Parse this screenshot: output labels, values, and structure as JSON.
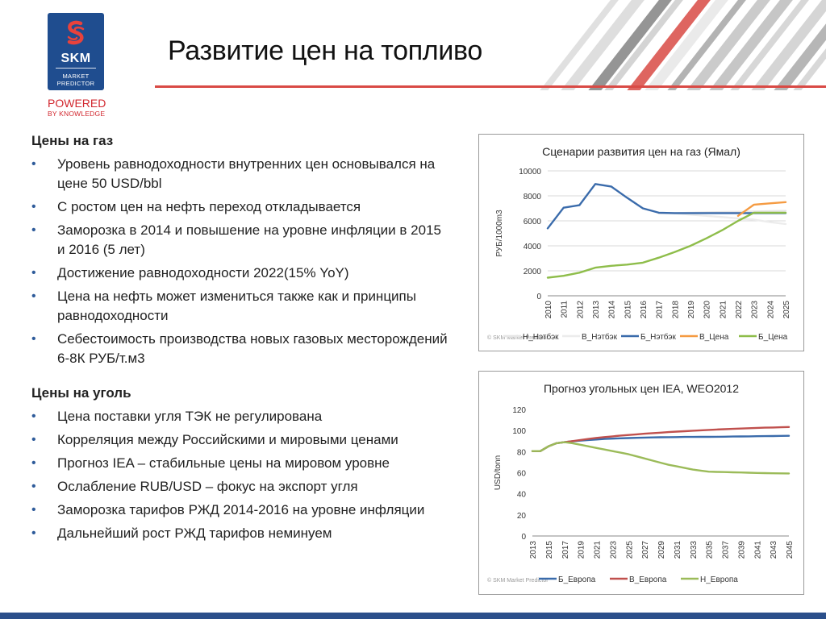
{
  "logo": {
    "name": "SKM",
    "tagline_line1": "MARKET",
    "tagline_line2": "PREDICTOR",
    "powered": "POWERED",
    "by": "BY KNOWLEDGE"
  },
  "page_title": "Развитие цен на топливо",
  "gas_section": {
    "heading": "Цены на газ",
    "bullets": [
      "Уровень равнодоходности внутренних цен основывался на цене 50 USD/bbl",
      "С ростом цен на нефть переход откладывается",
      "Заморозка в 2014 и повышение на уровне инфляции в 2015 и 2016 (5 лет)",
      "Достижение равнодоходности 2022(15% YoY)",
      "Цена на нефть может измениться также как и принципы равнодоходности",
      "Себестоимость производства новых  газовых месторождений 6-8К РУБ/т.м3"
    ]
  },
  "coal_section": {
    "heading": "Цены на уголь",
    "bullets": [
      "Цена поставки угля ТЭК не регулирована",
      "Корреляция между Российскими и мировыми ценами",
      "Прогноз IEA – стабильные цены на мировом уровне",
      "Ослабление RUB/USD – фокус на экспорт угля",
      "Заморозка тарифов РЖД 2014-2016 на уровне инфляции",
      "Дальнейший рост РЖД тарифов неминуем"
    ]
  },
  "colors": {
    "accent_red": "#d94a45",
    "brand_blue": "#1f4d8f",
    "gridline": "#d9d9d9"
  },
  "chart_data": [
    {
      "type": "line",
      "title": "Сценарии развития цен на газ (Ямал)",
      "ylabel": "РУБ/1000m3",
      "xlabel": "",
      "watermark": "© SKM Market Predictor",
      "ylim": [
        0,
        10000
      ],
      "yticks": [
        0,
        2000,
        4000,
        6000,
        8000,
        10000
      ],
      "grid": true,
      "legend_position": "bottom",
      "x": [
        2010,
        2011,
        2012,
        2013,
        2014,
        2015,
        2016,
        2017,
        2018,
        2019,
        2020,
        2021,
        2022,
        2023,
        2024,
        2025
      ],
      "series": [
        {
          "name": "Н_Нэтбэк",
          "color": "#e6e6e6",
          "values": [
            null,
            null,
            null,
            null,
            null,
            null,
            null,
            6600,
            6620,
            6650,
            6680,
            6700,
            6720,
            6750,
            6780,
            6800
          ]
        },
        {
          "name": "В_Нэтбэк",
          "color": "#ececec",
          "values": [
            null,
            null,
            null,
            null,
            null,
            null,
            null,
            6650,
            6600,
            6500,
            6400,
            6300,
            6200,
            6100,
            5900,
            5750
          ]
        },
        {
          "name": "Б_Нэтбэк",
          "color": "#3a6bab",
          "values": [
            5400,
            7050,
            7250,
            8950,
            8750,
            7850,
            7000,
            6650,
            6620,
            6620,
            6620,
            6620,
            6620,
            6620,
            6620,
            6620
          ]
        },
        {
          "name": "В_Цена",
          "color": "#f59b42",
          "values": [
            null,
            null,
            null,
            null,
            null,
            null,
            null,
            null,
            null,
            null,
            null,
            null,
            6400,
            7300,
            7400,
            7500
          ]
        },
        {
          "name": "Б_Цена",
          "color": "#8ebd4a",
          "values": [
            1450,
            1600,
            1850,
            2250,
            2400,
            2500,
            2650,
            3050,
            3500,
            4000,
            4600,
            5250,
            6000,
            6650,
            6650,
            6650
          ]
        }
      ]
    },
    {
      "type": "line",
      "title": "Прогноз угольных цен IEA, WEO2012",
      "ylabel": "USD/tonn",
      "xlabel": "",
      "watermark": "© SKM Market Predictor",
      "ylim": [
        0,
        120
      ],
      "yticks": [
        0,
        20,
        40,
        60,
        80,
        100,
        120
      ],
      "grid": false,
      "legend_position": "bottom",
      "x": [
        2013,
        2014,
        2015,
        2016,
        2017,
        2018,
        2019,
        2020,
        2021,
        2022,
        2023,
        2024,
        2025,
        2026,
        2027,
        2028,
        2029,
        2030,
        2031,
        2032,
        2033,
        2034,
        2035,
        2036,
        2037,
        2038,
        2039,
        2040,
        2041,
        2042,
        2043,
        2044,
        2045
      ],
      "xtick_labels": [
        "2013",
        "2015",
        "2017",
        "2019",
        "2021",
        "2023",
        "2025",
        "2027",
        "2029",
        "2031",
        "2033",
        "2035",
        "2037",
        "2039",
        "2041",
        "2043",
        "2045"
      ],
      "series": [
        {
          "name": "Б_Европа",
          "color": "#3a6bab",
          "values": [
            80.5,
            80.5,
            85,
            88,
            89,
            89.8,
            90.4,
            91,
            91.5,
            92,
            92.3,
            92.6,
            92.9,
            93.1,
            93.3,
            93.5,
            93.6,
            93.7,
            93.8,
            93.9,
            93.9,
            94.0,
            94.0,
            94.1,
            94.2,
            94.3,
            94.4,
            94.5,
            94.6,
            94.7,
            94.8,
            94.9,
            95.0
          ]
        },
        {
          "name": "В_Европа",
          "color": "#c0504d",
          "values": [
            80.5,
            80.5,
            85,
            88,
            89,
            90,
            91,
            92,
            93,
            93.8,
            94.5,
            95.2,
            95.8,
            96.4,
            97,
            97.5,
            98,
            98.5,
            99,
            99.4,
            99.8,
            100.2,
            100.6,
            101,
            101.3,
            101.6,
            101.9,
            102.2,
            102.5,
            102.7,
            102.9,
            103.1,
            103.3
          ]
        },
        {
          "name": "Н_Европа",
          "color": "#9bbb59",
          "values": [
            80.5,
            80.5,
            85,
            88,
            89,
            88,
            86.5,
            85,
            83.5,
            82,
            80.5,
            79,
            77.5,
            75.5,
            73.5,
            71.5,
            69.5,
            67.5,
            66,
            64.5,
            63,
            62,
            61,
            60.8,
            60.6,
            60.4,
            60.2,
            60.0,
            59.8,
            59.6,
            59.5,
            59.4,
            59.3
          ]
        }
      ]
    }
  ]
}
